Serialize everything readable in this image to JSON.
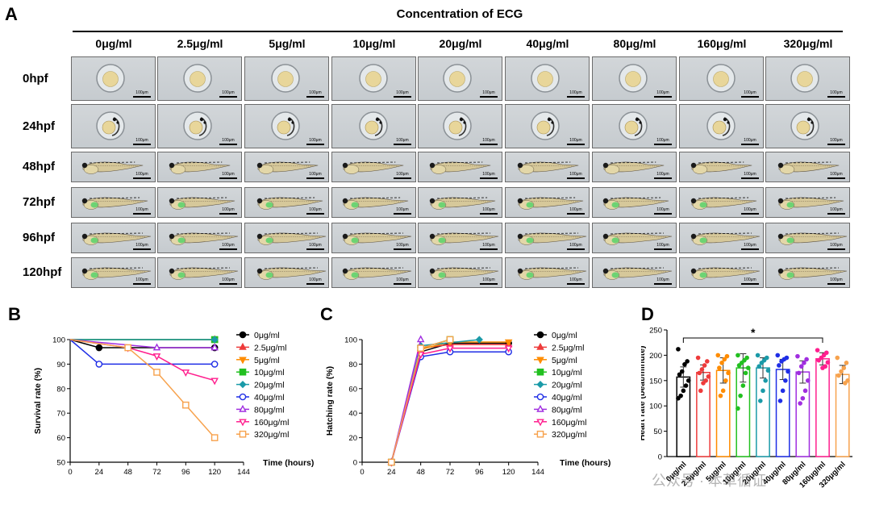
{
  "panelA": {
    "letter": "A",
    "title": "Concentration of ECG",
    "concentrations": [
      "0μg/ml",
      "2.5μg/ml",
      "5μg/ml",
      "10μg/ml",
      "20μg/ml",
      "40μg/ml",
      "80μg/ml",
      "160μg/ml",
      "320μg/ml"
    ],
    "timepoints": [
      "0hpf",
      "24hpf",
      "48hpf",
      "72hpf",
      "96hpf",
      "120hpf"
    ],
    "scale_label": "100μm"
  },
  "panelB": {
    "letter": "B"
  },
  "panelC": {
    "letter": "C"
  },
  "panelD": {
    "letter": "D"
  },
  "watermark": "公众号 · 本草循证",
  "colors": {
    "0μg/ml": "#000000",
    "2.5μg/ml": "#ee3b3b",
    "5μg/ml": "#ff8c00",
    "10μg/ml": "#22c020",
    "20μg/ml": "#1a9aa8",
    "40μg/ml": "#1f2ee6",
    "80μg/ml": "#a02ee0",
    "160μg/ml": "#ff1f8e",
    "320μg/ml": "#f7a24d"
  },
  "chart_data": [
    {
      "type": "line",
      "ylabel": "Survival rate (%)",
      "xlabel": "Time (hours)",
      "xlim": [
        0,
        144
      ],
      "ylim": [
        50,
        100
      ],
      "xticks": [
        0,
        24,
        48,
        72,
        96,
        120,
        144
      ],
      "yticks": [
        50,
        60,
        70,
        80,
        90,
        100
      ],
      "series": [
        {
          "name": "0μg/ml",
          "marker": "circle",
          "fill": true,
          "x": [
            0,
            24,
            120
          ],
          "y": [
            100,
            96.7,
            96.7
          ]
        },
        {
          "name": "2.5μg/ml",
          "marker": "triangle",
          "fill": true,
          "x": [
            0,
            120
          ],
          "y": [
            100,
            100
          ]
        },
        {
          "name": "5μg/ml",
          "marker": "triangle-down",
          "fill": true,
          "x": [
            0,
            120
          ],
          "y": [
            100,
            100
          ]
        },
        {
          "name": "10μg/ml",
          "marker": "square",
          "fill": true,
          "x": [
            0,
            120
          ],
          "y": [
            100,
            100
          ]
        },
        {
          "name": "20μg/ml",
          "marker": "diamond",
          "fill": true,
          "x": [
            0,
            120
          ],
          "y": [
            100,
            100
          ]
        },
        {
          "name": "40μg/ml",
          "marker": "circle",
          "fill": false,
          "x": [
            0,
            24,
            120
          ],
          "y": [
            100,
            90,
            90
          ]
        },
        {
          "name": "80μg/ml",
          "marker": "triangle",
          "fill": false,
          "x": [
            0,
            72,
            120
          ],
          "y": [
            100,
            96.7,
            96.7
          ]
        },
        {
          "name": "160μg/ml",
          "marker": "triangle-down",
          "fill": false,
          "x": [
            0,
            48,
            72,
            96,
            120
          ],
          "y": [
            100,
            96.7,
            93.3,
            86.7,
            83.3
          ]
        },
        {
          "name": "320μg/ml",
          "marker": "square",
          "fill": false,
          "x": [
            0,
            48,
            72,
            96,
            120
          ],
          "y": [
            100,
            96.7,
            86.7,
            73.3,
            60
          ]
        }
      ]
    },
    {
      "type": "line",
      "ylabel": "Hatching rate (%)",
      "xlabel": "Time (hours)",
      "xlim": [
        0,
        144
      ],
      "ylim": [
        0,
        100
      ],
      "xticks": [
        0,
        24,
        48,
        72,
        96,
        120,
        144
      ],
      "yticks": [
        0,
        20,
        40,
        60,
        80,
        100
      ],
      "series": [
        {
          "name": "0μg/ml",
          "marker": "circle",
          "fill": true,
          "x": [
            24,
            48,
            72,
            120
          ],
          "y": [
            0,
            90,
            97,
            97
          ]
        },
        {
          "name": "2.5μg/ml",
          "marker": "triangle",
          "fill": true,
          "x": [
            24,
            48,
            72,
            120
          ],
          "y": [
            0,
            93,
            96,
            96
          ]
        },
        {
          "name": "5μg/ml",
          "marker": "triangle-down",
          "fill": true,
          "x": [
            24,
            48,
            72,
            120
          ],
          "y": [
            0,
            92,
            98,
            98
          ]
        },
        {
          "name": "10μg/ml",
          "marker": "square",
          "fill": true,
          "x": [
            24,
            48,
            72
          ],
          "y": [
            0,
            93,
            100
          ]
        },
        {
          "name": "20μg/ml",
          "marker": "diamond",
          "fill": true,
          "x": [
            24,
            48,
            96
          ],
          "y": [
            0,
            95,
            100
          ]
        },
        {
          "name": "40μg/ml",
          "marker": "circle",
          "fill": false,
          "x": [
            24,
            48,
            72,
            120
          ],
          "y": [
            0,
            86,
            90,
            90
          ]
        },
        {
          "name": "80μg/ml",
          "marker": "triangle",
          "fill": false,
          "x": [
            24,
            48
          ],
          "y": [
            0,
            100
          ]
        },
        {
          "name": "160μg/ml",
          "marker": "triangle-down",
          "fill": false,
          "x": [
            24,
            48,
            72,
            120
          ],
          "y": [
            0,
            88,
            93,
            93
          ]
        },
        {
          "name": "320μg/ml",
          "marker": "square",
          "fill": false,
          "x": [
            24,
            48,
            72
          ],
          "y": [
            0,
            93,
            100
          ]
        }
      ]
    },
    {
      "type": "bar",
      "ylabel": "Heart rate (beat/minute)",
      "ylim": [
        0,
        250
      ],
      "yticks": [
        0,
        50,
        100,
        150,
        200,
        250
      ],
      "categories": [
        "0μg/ml",
        "2.5μg/ml",
        "5μg/ml",
        "10μg/ml",
        "20μg/ml",
        "40μg/ml",
        "80μg/ml",
        "160μg/ml",
        "320μg/ml"
      ],
      "values": [
        157,
        166,
        170,
        175,
        175,
        172,
        167,
        193,
        162
      ],
      "errors": [
        20,
        15,
        25,
        28,
        20,
        20,
        22,
        12,
        18
      ],
      "points": [
        [
          212,
          188,
          182,
          168,
          162,
          150,
          140,
          130,
          120,
          115
        ],
        [
          195,
          188,
          180,
          172,
          165,
          158,
          150,
          145,
          130
        ],
        [
          200,
          198,
          192,
          185,
          175,
          165,
          150,
          130,
          120
        ],
        [
          200,
          195,
          190,
          185,
          180,
          175,
          165,
          140,
          120,
          95
        ],
        [
          200,
          195,
          190,
          185,
          178,
          170,
          150,
          130,
          110
        ],
        [
          200,
          195,
          192,
          188,
          180,
          168,
          150,
          130,
          110
        ],
        [
          198,
          192,
          185,
          178,
          165,
          150,
          130,
          115,
          105
        ],
        [
          210,
          205,
          200,
          195,
          190,
          186,
          178,
          175
        ],
        [
          195,
          185,
          175,
          168,
          160,
          150,
          145
        ]
      ],
      "annotation": "*",
      "annotation_span": [
        "0μg/ml",
        "160μg/ml"
      ]
    }
  ]
}
